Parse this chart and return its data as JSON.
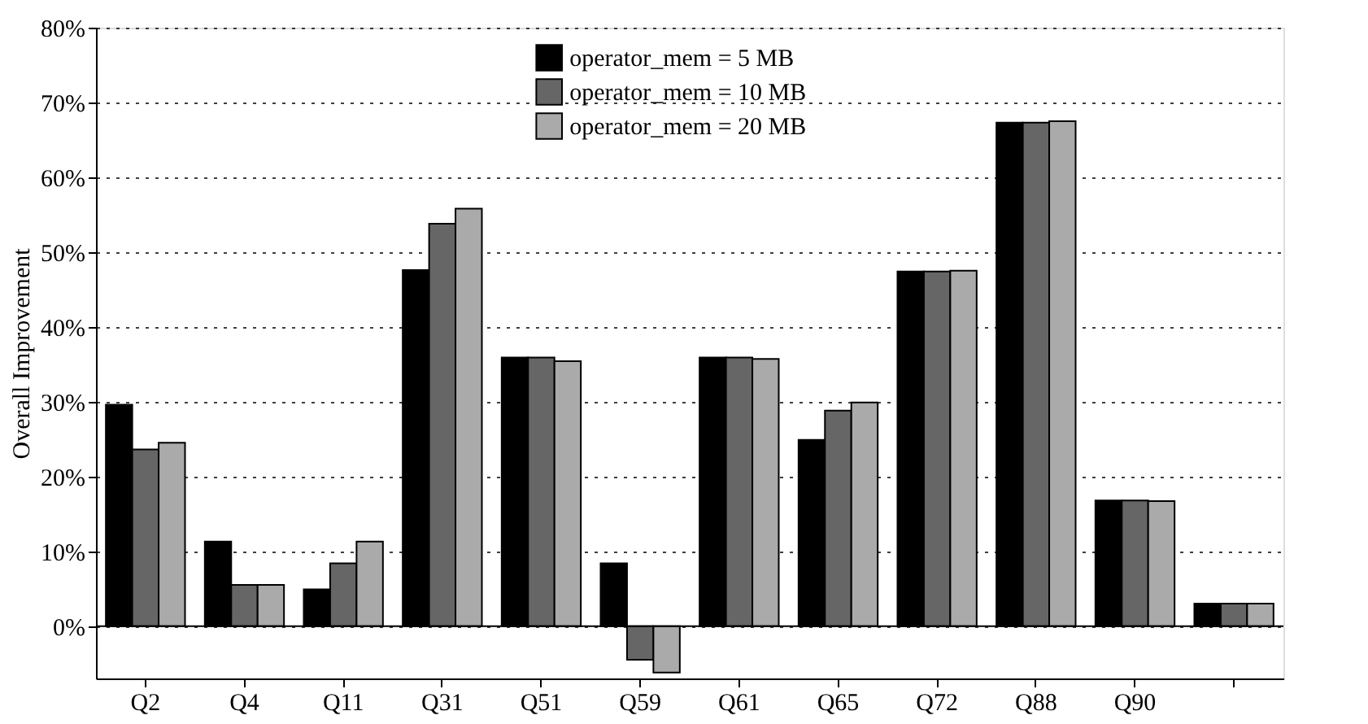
{
  "chart_data": {
    "type": "bar",
    "ylabel": "Overall Improvement",
    "categories": [
      "Q2",
      "Q4",
      "Q11",
      "Q31",
      "Q51",
      "Q59",
      "Q61",
      "Q65",
      "Q72",
      "Q88",
      "Q90",
      null
    ],
    "series": [
      {
        "name": "operator_mem = 5 MB",
        "color": "#000000",
        "values": [
          29.6,
          11.3,
          4.9,
          47.6,
          35.9,
          8.4,
          35.9,
          24.9,
          47.4,
          67.3,
          16.8,
          3.0
        ]
      },
      {
        "name": "operator_mem = 10 MB",
        "color": "#666666",
        "values": [
          23.6,
          5.5,
          8.4,
          53.8,
          35.9,
          -4.5,
          35.9,
          28.8,
          47.4,
          67.3,
          16.8,
          3.0
        ]
      },
      {
        "name": "operator_mem = 20 MB",
        "color": "#aaaaaa",
        "values": [
          24.5,
          5.5,
          11.3,
          55.8,
          35.4,
          -6.2,
          35.7,
          29.9,
          47.5,
          67.5,
          16.7,
          3.0
        ]
      }
    ],
    "ylim": [
      -7,
      80
    ],
    "yticks": [
      {
        "value": 0,
        "label": "0%"
      },
      {
        "value": 10,
        "label": "10%"
      },
      {
        "value": 20,
        "label": "20%"
      },
      {
        "value": 30,
        "label": "30%"
      },
      {
        "value": 40,
        "label": "40%"
      },
      {
        "value": 50,
        "label": "50%"
      },
      {
        "value": 60,
        "label": "60%"
      },
      {
        "value": 70,
        "label": "70%"
      },
      {
        "value": 80,
        "label": "80%"
      }
    ],
    "ref_lines": [
      {
        "axis": "y",
        "value": 0,
        "color": "#000000",
        "line_style": "solid"
      }
    ],
    "grid": "y",
    "legend": "top"
  }
}
